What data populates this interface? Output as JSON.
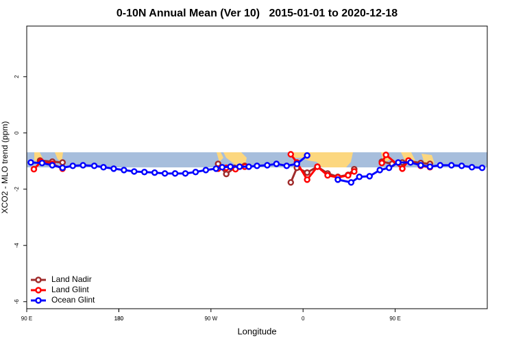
{
  "chart_data": {
    "type": "line",
    "title": "0-10N Annual Mean (Ver 10)   2015-01-01 to 2020-12-18",
    "xlabel": "Longitude",
    "ylabel": "XCO2 - MLO trend (ppm)",
    "xlim": [
      90,
      540
    ],
    "xticks": [
      {
        "value": 90,
        "label": "90 E"
      },
      180,
      {
        "value": 270,
        "label": "90 W"
      },
      {
        "value": 360,
        "label": "0"
      },
      {
        "value": 450,
        "label": "90 E"
      },
      180
    ],
    "ylim": [
      -6.25,
      3.8
    ],
    "yticks": [
      -6,
      -4,
      -2,
      0,
      2
    ],
    "legend": "lower left",
    "series": [
      {
        "name": "Land Nadir",
        "color": "#a02c2c",
        "x": [
          103,
          115,
          125,
          null,
          277,
          285,
          293,
          303,
          null,
          348,
          354,
          364,
          374,
          384,
          394,
          404,
          410,
          null,
          437,
          447,
          457,
          463,
          475,
          484
        ],
        "values": [
          -0.98,
          -1.02,
          -1.05,
          null,
          -1.1,
          -1.46,
          -1.24,
          -1.17,
          null,
          -1.76,
          -1.24,
          -1.41,
          -1.2,
          -1.44,
          -1.56,
          -1.49,
          -1.29,
          null,
          -1.02,
          -1.1,
          -1.05,
          -1.0,
          -1.07,
          -1.1
        ]
      },
      {
        "name": "Land Glint",
        "color": "#ff0000",
        "x": [
          97,
          104,
          115,
          125,
          null,
          277,
          285,
          294,
          303,
          null,
          348,
          354,
          364,
          374,
          384,
          394,
          404,
          410,
          null,
          437,
          441,
          457,
          463,
          475,
          484
        ],
        "values": [
          -1.29,
          -1.02,
          -1.1,
          -1.27,
          null,
          -1.27,
          -1.24,
          -1.29,
          -1.2,
          null,
          -0.76,
          -1.05,
          -1.66,
          -1.2,
          -1.51,
          -1.58,
          -1.51,
          -1.37,
          null,
          -1.07,
          -0.78,
          -1.27,
          -0.98,
          -1.17,
          -1.22
        ]
      },
      {
        "name": "Ocean Glint",
        "color": "#0000ff",
        "x": [
          94,
          105,
          115,
          125,
          135,
          145,
          156,
          165,
          175,
          185,
          195,
          205,
          215,
          225,
          235,
          245,
          255,
          265,
          275,
          281,
          289,
          298,
          307,
          315,
          325,
          334,
          344,
          354,
          364,
          null,
          394,
          407,
          415,
          425,
          435,
          444,
          453,
          465,
          475,
          484,
          494,
          505,
          515,
          525,
          535
        ],
        "values": [
          -1.05,
          -1.07,
          -1.15,
          -1.24,
          -1.17,
          -1.15,
          -1.17,
          -1.22,
          -1.27,
          -1.32,
          -1.37,
          -1.39,
          -1.41,
          -1.44,
          -1.44,
          -1.44,
          -1.39,
          -1.32,
          -1.27,
          -1.22,
          -1.2,
          -1.2,
          -1.2,
          -1.17,
          -1.15,
          -1.1,
          -1.17,
          -1.1,
          -0.8,
          null,
          -1.66,
          -1.76,
          -1.56,
          -1.54,
          -1.32,
          -1.24,
          -1.05,
          -1.05,
          -1.15,
          -1.2,
          -1.15,
          -1.15,
          -1.17,
          -1.22,
          -1.24
        ]
      }
    ]
  }
}
